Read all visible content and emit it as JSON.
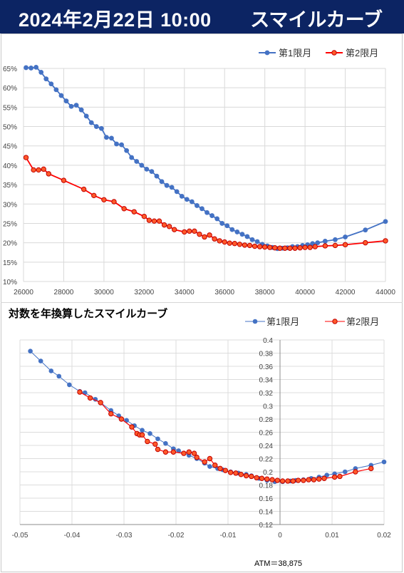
{
  "header": {
    "date": "2024年2月22日 10:00",
    "title": "スマイルカーブ"
  },
  "lower_title": "対数を年換算したスマイルカーブ",
  "atm_label": "ATM＝38,875",
  "colors": {
    "blue": "#4472c4",
    "red": "#ff0000",
    "header_bg": "#0c2463",
    "marker_red": "#ff5a2a"
  },
  "chart_data": [
    {
      "type": "line",
      "title": "",
      "xlim": [
        26000,
        44000
      ],
      "ylim": [
        0.1,
        0.65
      ],
      "x_ticks": [
        "26000",
        "28000",
        "30000",
        "32000",
        "34000",
        "36000",
        "38000",
        "40000",
        "42000",
        "44000"
      ],
      "y_ticks": [
        "10%",
        "15%",
        "20%",
        "25%",
        "30%",
        "35%",
        "40%",
        "45%",
        "50%",
        "55%",
        "60%",
        "65%"
      ],
      "legend": "top-right",
      "series": [
        {
          "name": "第1限月",
          "color": "#4472c4",
          "points": [
            [
              26125,
              0.652
            ],
            [
              26375,
              0.651
            ],
            [
              26625,
              0.653
            ],
            [
              26875,
              0.64
            ],
            [
              27125,
              0.623
            ],
            [
              27375,
              0.61
            ],
            [
              27625,
              0.595
            ],
            [
              27875,
              0.58
            ],
            [
              28125,
              0.566
            ],
            [
              28375,
              0.552
            ],
            [
              28625,
              0.555
            ],
            [
              28875,
              0.543
            ],
            [
              29125,
              0.527
            ],
            [
              29375,
              0.51
            ],
            [
              29625,
              0.5
            ],
            [
              29875,
              0.495
            ],
            [
              30125,
              0.472
            ],
            [
              30375,
              0.47
            ],
            [
              30625,
              0.455
            ],
            [
              30875,
              0.453
            ],
            [
              31125,
              0.438
            ],
            [
              31375,
              0.42
            ],
            [
              31625,
              0.41
            ],
            [
              31875,
              0.4
            ],
            [
              32125,
              0.39
            ],
            [
              32375,
              0.384
            ],
            [
              32625,
              0.372
            ],
            [
              32875,
              0.358
            ],
            [
              33125,
              0.348
            ],
            [
              33375,
              0.343
            ],
            [
              33625,
              0.332
            ],
            [
              33875,
              0.32
            ],
            [
              34125,
              0.312
            ],
            [
              34375,
              0.306
            ],
            [
              34625,
              0.296
            ],
            [
              34875,
              0.288
            ],
            [
              35125,
              0.278
            ],
            [
              35375,
              0.27
            ],
            [
              35625,
              0.262
            ],
            [
              35875,
              0.25
            ],
            [
              36125,
              0.244
            ],
            [
              36375,
              0.234
            ],
            [
              36625,
              0.228
            ],
            [
              36875,
              0.222
            ],
            [
              37125,
              0.216
            ],
            [
              37375,
              0.208
            ],
            [
              37625,
              0.203
            ],
            [
              37875,
              0.196
            ],
            [
              38125,
              0.192
            ],
            [
              38375,
              0.188
            ],
            [
              38625,
              0.185
            ],
            [
              38875,
              0.186
            ],
            [
              39125,
              0.187
            ],
            [
              39375,
              0.19
            ],
            [
              39625,
              0.19
            ],
            [
              39875,
              0.193
            ],
            [
              40125,
              0.195
            ],
            [
              40375,
              0.198
            ],
            [
              40625,
              0.2
            ],
            [
              41000,
              0.204
            ],
            [
              41500,
              0.208
            ],
            [
              42000,
              0.215
            ],
            [
              43000,
              0.233
            ],
            [
              44000,
              0.255
            ]
          ]
        },
        {
          "name": "第2限月",
          "color": "#ff0000",
          "points": [
            [
              26125,
              0.42
            ],
            [
              26500,
              0.388
            ],
            [
              26750,
              0.388
            ],
            [
              27000,
              0.39
            ],
            [
              27250,
              0.378
            ],
            [
              28000,
              0.361
            ],
            [
              29000,
              0.338
            ],
            [
              29500,
              0.322
            ],
            [
              30000,
              0.311
            ],
            [
              30500,
              0.306
            ],
            [
              31000,
              0.288
            ],
            [
              31500,
              0.28
            ],
            [
              32000,
              0.268
            ],
            [
              32250,
              0.258
            ],
            [
              32500,
              0.256
            ],
            [
              32750,
              0.256
            ],
            [
              33000,
              0.246
            ],
            [
              33250,
              0.242
            ],
            [
              33500,
              0.234
            ],
            [
              34000,
              0.228
            ],
            [
              34250,
              0.23
            ],
            [
              34500,
              0.23
            ],
            [
              34750,
              0.222
            ],
            [
              35000,
              0.215
            ],
            [
              35250,
              0.22
            ],
            [
              35500,
              0.21
            ],
            [
              35750,
              0.205
            ],
            [
              36000,
              0.202
            ],
            [
              36250,
              0.199
            ],
            [
              36500,
              0.198
            ],
            [
              36750,
              0.196
            ],
            [
              37000,
              0.194
            ],
            [
              37250,
              0.193
            ],
            [
              37500,
              0.191
            ],
            [
              37750,
              0.19
            ],
            [
              38000,
              0.189
            ],
            [
              38250,
              0.188
            ],
            [
              38500,
              0.187
            ],
            [
              38750,
              0.186
            ],
            [
              39000,
              0.186
            ],
            [
              39250,
              0.186
            ],
            [
              39500,
              0.186
            ],
            [
              39750,
              0.187
            ],
            [
              40000,
              0.188
            ],
            [
              40250,
              0.188
            ],
            [
              40500,
              0.19
            ],
            [
              41000,
              0.192
            ],
            [
              41500,
              0.193
            ],
            [
              42000,
              0.195
            ],
            [
              43000,
              0.2
            ],
            [
              44000,
              0.205
            ]
          ]
        }
      ]
    },
    {
      "type": "line",
      "title": "対数を年換算したスマイルカーブ",
      "xlim": [
        -0.05,
        0.02
      ],
      "ylim": [
        0.12,
        0.4
      ],
      "x_ticks": [
        "-0.05",
        "-0.04",
        "-0.03",
        "-0.02",
        "-0.01",
        "0",
        "0.01",
        "0.02"
      ],
      "y_ticks": [
        "0.12",
        "0.14",
        "0.16",
        "0.18",
        "0.2",
        "0.22",
        "0.24",
        "0.26",
        "0.28",
        "0.3",
        "0.32",
        "0.34",
        "0.36",
        "0.38",
        "0.4"
      ],
      "legend": "top-right",
      "series": [
        {
          "name": "第1限月",
          "color": "#4472c4",
          "points": [
            [
              -0.048,
              0.383
            ],
            [
              -0.046,
              0.368
            ],
            [
              -0.044,
              0.353
            ],
            [
              -0.0425,
              0.345
            ],
            [
              -0.0405,
              0.332
            ],
            [
              -0.0385,
              0.322
            ],
            [
              -0.0375,
              0.32
            ],
            [
              -0.0355,
              0.31
            ],
            [
              -0.0345,
              0.305
            ],
            [
              -0.0325,
              0.293
            ],
            [
              -0.031,
              0.285
            ],
            [
              -0.0295,
              0.278
            ],
            [
              -0.028,
              0.27
            ],
            [
              -0.0265,
              0.263
            ],
            [
              -0.025,
              0.258
            ],
            [
              -0.0235,
              0.25
            ],
            [
              -0.022,
              0.243
            ],
            [
              -0.0205,
              0.235
            ],
            [
              -0.0195,
              0.232
            ],
            [
              -0.0175,
              0.225
            ],
            [
              -0.016,
              0.22
            ],
            [
              -0.0145,
              0.213
            ],
            [
              -0.0135,
              0.208
            ],
            [
              -0.012,
              0.205
            ],
            [
              -0.011,
              0.203
            ],
            [
              -0.0095,
              0.2
            ],
            [
              -0.008,
              0.198
            ],
            [
              -0.0065,
              0.196
            ],
            [
              -0.0055,
              0.194
            ],
            [
              -0.004,
              0.19
            ],
            [
              -0.0025,
              0.187
            ],
            [
              -0.001,
              0.185
            ],
            [
              0.0005,
              0.185
            ],
            [
              0.002,
              0.186
            ],
            [
              0.003,
              0.187
            ],
            [
              0.0045,
              0.188
            ],
            [
              0.006,
              0.19
            ],
            [
              0.0075,
              0.192
            ],
            [
              0.009,
              0.195
            ],
            [
              0.0105,
              0.197
            ],
            [
              0.0125,
              0.2
            ],
            [
              0.0145,
              0.205
            ],
            [
              0.0175,
              0.21
            ],
            [
              0.02,
              0.215
            ]
          ]
        },
        {
          "name": "第2限月",
          "color": "#ff0000",
          "points": [
            [
              -0.0385,
              0.321
            ],
            [
              -0.0365,
              0.312
            ],
            [
              -0.0345,
              0.305
            ],
            [
              -0.0325,
              0.288
            ],
            [
              -0.0305,
              0.28
            ],
            [
              -0.0285,
              0.268
            ],
            [
              -0.0275,
              0.258
            ],
            [
              -0.027,
              0.256
            ],
            [
              -0.0265,
              0.256
            ],
            [
              -0.0255,
              0.246
            ],
            [
              -0.024,
              0.242
            ],
            [
              -0.0235,
              0.234
            ],
            [
              -0.022,
              0.23
            ],
            [
              -0.0205,
              0.23
            ],
            [
              -0.0185,
              0.228
            ],
            [
              -0.0175,
              0.23
            ],
            [
              -0.0165,
              0.228
            ],
            [
              -0.016,
              0.222
            ],
            [
              -0.0145,
              0.215
            ],
            [
              -0.0135,
              0.22
            ],
            [
              -0.0125,
              0.21
            ],
            [
              -0.0115,
              0.205
            ],
            [
              -0.0105,
              0.202
            ],
            [
              -0.0095,
              0.199
            ],
            [
              -0.0085,
              0.198
            ],
            [
              -0.0075,
              0.196
            ],
            [
              -0.0065,
              0.194
            ],
            [
              -0.0055,
              0.193
            ],
            [
              -0.0045,
              0.191
            ],
            [
              -0.0035,
              0.19
            ],
            [
              -0.0025,
              0.189
            ],
            [
              -0.0015,
              0.188
            ],
            [
              -0.0005,
              0.187
            ],
            [
              0.0005,
              0.186
            ],
            [
              0.0015,
              0.186
            ],
            [
              0.0025,
              0.186
            ],
            [
              0.0035,
              0.187
            ],
            [
              0.0045,
              0.187
            ],
            [
              0.0055,
              0.188
            ],
            [
              0.0065,
              0.188
            ],
            [
              0.0075,
              0.189
            ],
            [
              0.0085,
              0.19
            ],
            [
              0.0105,
              0.192
            ],
            [
              0.0115,
              0.193
            ],
            [
              0.0145,
              0.2
            ],
            [
              0.0175,
              0.205
            ]
          ]
        }
      ]
    }
  ]
}
